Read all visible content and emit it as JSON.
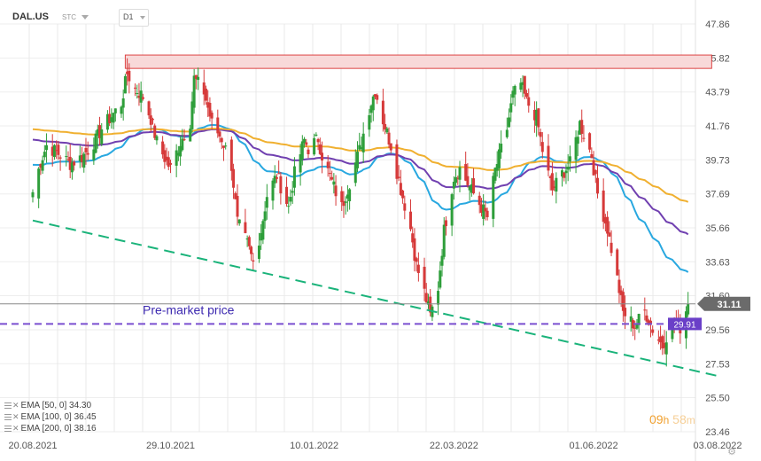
{
  "header": {
    "symbol": "DAL.US",
    "exchange_tag": "STC",
    "timeframe": "D1"
  },
  "chart_data": {
    "type": "candlestick",
    "y_ticks": [
      "47.86",
      "45.82",
      "43.79",
      "41.76",
      "39.73",
      "37.69",
      "35.66",
      "33.63",
      "31.60",
      "29.56",
      "27.53",
      "25.50",
      "23.46"
    ],
    "x_ticks": [
      "20.08.2021",
      "29.10.2021",
      "10.01.2022",
      "22.03.2022",
      "01.06.2022",
      "03.08.2022"
    ],
    "ylim": [
      23.46,
      47.86
    ],
    "current_price": 31.11,
    "current_price_label": "31.11",
    "premarket_price": 29.91,
    "premarket_price_label": "29.91",
    "premarket_text": "Pre-market price",
    "resistance_zone": {
      "low": 45.2,
      "high": 46.0
    },
    "trendline": {
      "start": [
        "2021-08-20",
        36.1
      ],
      "end": [
        "2022-08-03",
        26.8
      ]
    },
    "ema": [
      {
        "label": "EMA [50, 0] 34.30",
        "period": 50,
        "last": 34.3,
        "color": "#29a8e0"
      },
      {
        "label": "EMA [100, 0] 36.45",
        "period": 100,
        "last": 36.45,
        "color": "#7040b0"
      },
      {
        "label": "EMA [200, 0] 38.16",
        "period": 200,
        "last": 38.16,
        "color": "#f0b030"
      }
    ],
    "colors": {
      "up": "#2e9e3a",
      "down": "#d63a3a",
      "trendline": "#1ab37a",
      "premarket": "#7a4fd0",
      "zone_fill": "#f8d9d9",
      "zone_border": "#d44"
    },
    "close_path": [
      [
        "2021-08-20",
        37.8
      ],
      [
        "2021-08-24",
        39.6
      ],
      [
        "2021-08-27",
        40.6
      ],
      [
        "2021-09-02",
        40.1
      ],
      [
        "2021-09-08",
        39.5
      ],
      [
        "2021-09-14",
        39.9
      ],
      [
        "2021-09-21",
        40.9
      ],
      [
        "2021-09-24",
        41.6
      ],
      [
        "2021-09-30",
        42.5
      ],
      [
        "2021-10-04",
        43.1
      ],
      [
        "2021-10-07",
        44.9
      ],
      [
        "2021-10-11",
        44.0
      ],
      [
        "2021-10-15",
        43.5
      ],
      [
        "2021-10-19",
        42.2
      ],
      [
        "2021-10-22",
        40.8
      ],
      [
        "2021-10-27",
        39.6
      ],
      [
        "2021-10-29",
        39.2
      ],
      [
        "2021-11-03",
        40.8
      ],
      [
        "2021-11-08",
        42.0
      ],
      [
        "2021-11-10",
        44.6
      ],
      [
        "2021-11-15",
        43.8
      ],
      [
        "2021-11-19",
        41.9
      ],
      [
        "2021-11-24",
        41.0
      ],
      [
        "2021-11-29",
        39.4
      ],
      [
        "2021-12-02",
        36.0
      ],
      [
        "2021-12-07",
        34.7
      ],
      [
        "2021-12-10",
        33.6
      ],
      [
        "2021-12-14",
        35.5
      ],
      [
        "2021-12-17",
        37.6
      ],
      [
        "2021-12-22",
        38.8
      ],
      [
        "2021-12-28",
        36.9
      ],
      [
        "2021-12-31",
        38.9
      ],
      [
        "2022-01-05",
        40.9
      ],
      [
        "2022-01-07",
        40.4
      ],
      [
        "2022-01-12",
        41.0
      ],
      [
        "2022-01-14",
        40.0
      ],
      [
        "2022-01-19",
        38.4
      ],
      [
        "2022-01-24",
        36.9
      ],
      [
        "2022-01-28",
        38.4
      ],
      [
        "2022-02-02",
        40.3
      ],
      [
        "2022-02-07",
        42.8
      ],
      [
        "2022-02-10",
        43.9
      ],
      [
        "2022-02-14",
        42.1
      ],
      [
        "2022-02-18",
        40.6
      ],
      [
        "2022-02-23",
        38.0
      ],
      [
        "2022-02-28",
        35.6
      ],
      [
        "2022-03-03",
        33.4
      ],
      [
        "2022-03-07",
        31.8
      ],
      [
        "2022-03-10",
        30.4
      ],
      [
        "2022-03-14",
        32.1
      ],
      [
        "2022-03-17",
        35.5
      ],
      [
        "2022-03-22",
        38.7
      ],
      [
        "2022-03-25",
        39.2
      ],
      [
        "2022-03-30",
        38.1
      ],
      [
        "2022-04-04",
        37.1
      ],
      [
        "2022-04-08",
        36.3
      ],
      [
        "2022-04-12",
        39.1
      ],
      [
        "2022-04-18",
        41.6
      ],
      [
        "2022-04-21",
        43.6
      ],
      [
        "2022-04-25",
        44.3
      ],
      [
        "2022-04-28",
        43.2
      ],
      [
        "2022-05-03",
        42.3
      ],
      [
        "2022-05-06",
        40.3
      ],
      [
        "2022-05-11",
        37.9
      ],
      [
        "2022-05-16",
        38.9
      ],
      [
        "2022-05-20",
        39.5
      ],
      [
        "2022-05-25",
        41.9
      ],
      [
        "2022-05-31",
        40.0
      ],
      [
        "2022-06-03",
        37.7
      ],
      [
        "2022-06-08",
        35.6
      ],
      [
        "2022-06-13",
        32.6
      ],
      [
        "2022-06-16",
        30.6
      ],
      [
        "2022-06-22",
        29.8
      ],
      [
        "2022-06-27",
        30.7
      ],
      [
        "2022-07-01",
        29.6
      ],
      [
        "2022-07-06",
        28.6
      ],
      [
        "2022-07-08",
        29.2
      ],
      [
        "2022-07-12",
        30.1
      ],
      [
        "2022-07-15",
        29.7
      ],
      [
        "2022-07-19",
        31.1
      ]
    ]
  },
  "timer": {
    "hours": "09",
    "h_unit": "h",
    "minutes": "58",
    "m_unit": "m"
  }
}
